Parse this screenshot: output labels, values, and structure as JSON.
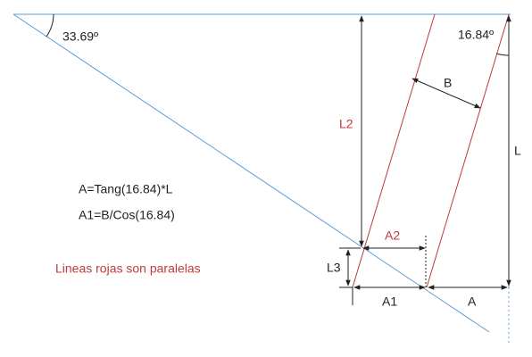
{
  "angles": {
    "left": "33.69º",
    "right": "16.84º"
  },
  "dimensions": {
    "b": "B",
    "l2": "L2",
    "l": "L",
    "a2": "A2",
    "l3": "L3",
    "a1": "A1",
    "a": "A"
  },
  "formulas": [
    "A=Tang(16.84)*L",
    "A1=B/Cos(16.84)"
  ],
  "note": "Lineas rojas son paralelas"
}
